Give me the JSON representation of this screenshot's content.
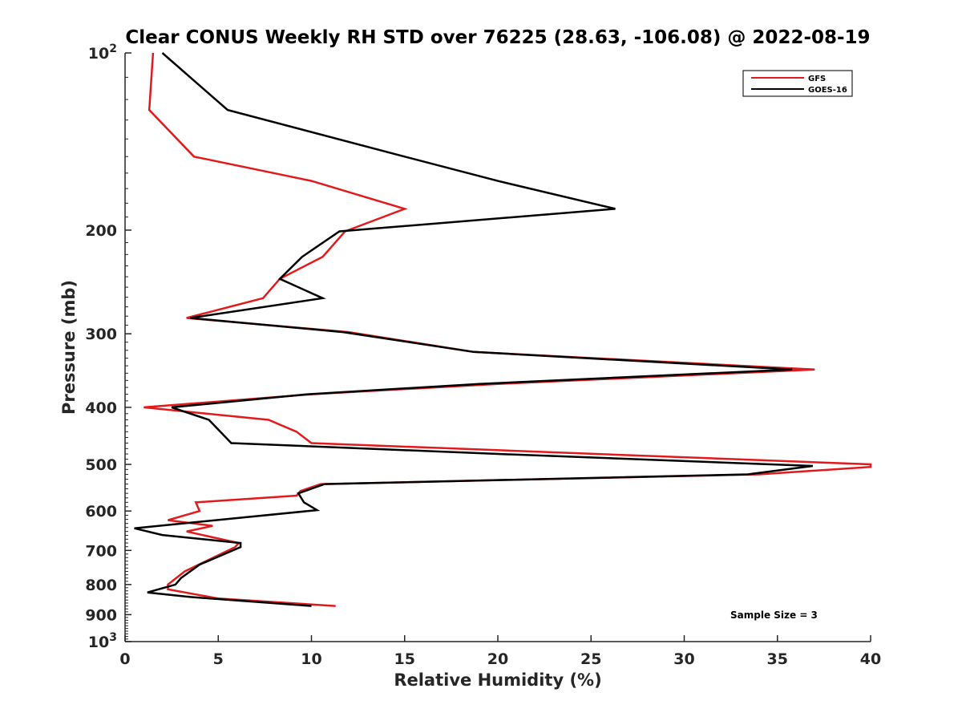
{
  "chart_data": {
    "type": "line",
    "title": "Clear CONUS Weekly RH STD over 76225 (28.63, -106.08) @ 2022-08-19",
    "xlabel": "Relative Humidity (%)",
    "ylabel": "Pressure (mb)",
    "xlim": [
      0,
      40
    ],
    "ylim": [
      1000,
      100
    ],
    "yscale": "log",
    "y_reversed": true,
    "grid": false,
    "legend_position": "top-right",
    "x_ticks": [
      "0",
      "5",
      "10",
      "15",
      "20",
      "25",
      "30",
      "35",
      "40"
    ],
    "y_ticks": [
      {
        "value": 100,
        "base": "10",
        "exp": "2"
      },
      {
        "value": 200,
        "label": "200"
      },
      {
        "value": 300,
        "label": "300"
      },
      {
        "value": 400,
        "label": "400"
      },
      {
        "value": 500,
        "label": "500"
      },
      {
        "value": 600,
        "label": "600"
      },
      {
        "value": 700,
        "label": "700"
      },
      {
        "value": 800,
        "label": "800"
      },
      {
        "value": 900,
        "label": "900"
      },
      {
        "value": 1000,
        "base": "10",
        "exp": "3"
      }
    ],
    "annotation": "Sample Size = 3",
    "series": [
      {
        "name": "GFS",
        "color": "#e31a1c",
        "points": [
          [
            1.5,
            100
          ],
          [
            1.3,
            125
          ],
          [
            3.7,
            150
          ],
          [
            10.0,
            165
          ],
          [
            15.0,
            184
          ],
          [
            11.8,
            201
          ],
          [
            10.6,
            222
          ],
          [
            8.3,
            242
          ],
          [
            7.4,
            261
          ],
          [
            3.3,
            282
          ],
          [
            12.0,
            298
          ],
          [
            18.7,
            322
          ],
          [
            37.0,
            345
          ],
          [
            20.0,
            365
          ],
          [
            10.0,
            380
          ],
          [
            1.0,
            400
          ],
          [
            7.7,
            420
          ],
          [
            9.2,
            440
          ],
          [
            10.0,
            460
          ],
          [
            40.0,
            500
          ],
          [
            40.0,
            505
          ],
          [
            34.0,
            520
          ],
          [
            10.5,
            540
          ],
          [
            9.4,
            555
          ],
          [
            9.2,
            565
          ],
          [
            3.8,
            580
          ],
          [
            4.0,
            600
          ],
          [
            2.3,
            622
          ],
          [
            4.7,
            636
          ],
          [
            3.3,
            650
          ],
          [
            6.1,
            680
          ],
          [
            5.9,
            691
          ],
          [
            3.2,
            760
          ],
          [
            2.3,
            800
          ],
          [
            2.3,
            815
          ],
          [
            5.0,
            845
          ],
          [
            11.3,
            870
          ]
        ]
      },
      {
        "name": "GOES-16",
        "color": "#000000",
        "points": [
          [
            2.0,
            100
          ],
          [
            5.5,
            125
          ],
          [
            15.0,
            150
          ],
          [
            20.0,
            165
          ],
          [
            26.3,
            184
          ],
          [
            11.5,
            201
          ],
          [
            9.5,
            222
          ],
          [
            8.3,
            242
          ],
          [
            10.6,
            261
          ],
          [
            3.5,
            282
          ],
          [
            11.7,
            298
          ],
          [
            13.8,
            305
          ],
          [
            18.7,
            322
          ],
          [
            35.8,
            345
          ],
          [
            19.0,
            365
          ],
          [
            9.8,
            380
          ],
          [
            2.5,
            400
          ],
          [
            4.5,
            420
          ],
          [
            5.7,
            460
          ],
          [
            20.0,
            480
          ],
          [
            36.9,
            503
          ],
          [
            33.4,
            520
          ],
          [
            10.7,
            540
          ],
          [
            9.3,
            560
          ],
          [
            9.6,
            580
          ],
          [
            10.3,
            598
          ],
          [
            0.5,
            642
          ],
          [
            2.0,
            659
          ],
          [
            6.2,
            680
          ],
          [
            6.2,
            691
          ],
          [
            4.0,
            740
          ],
          [
            3.0,
            780
          ],
          [
            2.7,
            800
          ],
          [
            1.2,
            825
          ],
          [
            3.5,
            840
          ],
          [
            10.0,
            870
          ]
        ]
      }
    ]
  }
}
